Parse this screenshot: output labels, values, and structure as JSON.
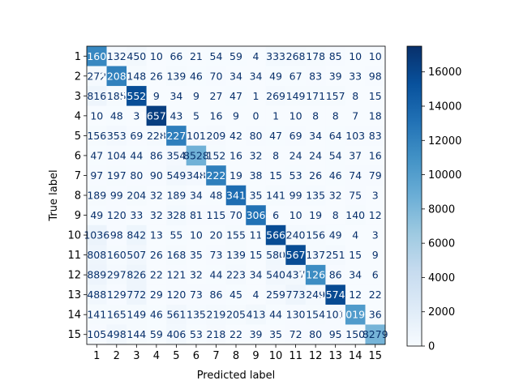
{
  "chart_data": {
    "type": "heatmap",
    "title": "",
    "xlabel": "Predicted label",
    "ylabel": "True label",
    "labels": [
      "1",
      "2",
      "3",
      "4",
      "5",
      "6",
      "7",
      "8",
      "9",
      "10",
      "11",
      "12",
      "13",
      "14",
      "15"
    ],
    "colormap": "Blues",
    "vmin": 0,
    "vmax": 17500,
    "colorbar_ticks": [
      0,
      2000,
      4000,
      6000,
      8000,
      10000,
      12000,
      14000,
      16000
    ],
    "matrix": [
      [
        11609,
        132,
        450,
        10,
        66,
        21,
        54,
        59,
        4,
        333,
        268,
        178,
        85,
        10,
        10
      ],
      [
        272,
        12082,
        148,
        26,
        139,
        46,
        70,
        34,
        34,
        49,
        67,
        83,
        39,
        33,
        98
      ],
      [
        816,
        185,
        15526,
        9,
        34,
        9,
        27,
        47,
        1,
        269,
        149,
        171,
        157,
        8,
        15
      ],
      [
        10,
        48,
        3,
        16571,
        43,
        5,
        16,
        9,
        0,
        1,
        10,
        8,
        8,
        7,
        18
      ],
      [
        156,
        353,
        69,
        228,
        12272,
        101,
        209,
        42,
        80,
        47,
        69,
        34,
        64,
        103,
        83
      ],
      [
        47,
        104,
        44,
        86,
        354,
        8528,
        152,
        16,
        32,
        8,
        24,
        24,
        54,
        37,
        16
      ],
      [
        97,
        197,
        80,
        90,
        549,
        348,
        12222,
        19,
        38,
        15,
        53,
        26,
        46,
        74,
        79
      ],
      [
        189,
        99,
        204,
        32,
        189,
        34,
        48,
        13418,
        35,
        141,
        99,
        135,
        32,
        75,
        3
      ],
      [
        49,
        120,
        33,
        32,
        328,
        81,
        115,
        70,
        13064,
        6,
        10,
        19,
        8,
        140,
        12
      ],
      [
        1036,
        98,
        842,
        13,
        55,
        10,
        20,
        155,
        11,
        15661,
        240,
        156,
        49,
        4,
        3
      ],
      [
        808,
        160,
        507,
        26,
        168,
        35,
        73,
        139,
        15,
        580,
        15671,
        137,
        251,
        15,
        9
      ],
      [
        889,
        297,
        826,
        22,
        121,
        32,
        44,
        223,
        34,
        540,
        437,
        11261,
        86,
        34,
        6
      ],
      [
        488,
        129,
        772,
        29,
        120,
        73,
        86,
        45,
        4,
        259,
        773,
        249,
        15747,
        12,
        22
      ],
      [
        141,
        165,
        149,
        46,
        561,
        135,
        219,
        205,
        413,
        44,
        130,
        154,
        101,
        10199,
        36
      ],
      [
        105,
        498,
        144,
        59,
        406,
        53,
        218,
        22,
        39,
        35,
        72,
        80,
        95,
        150,
        8279
      ]
    ]
  }
}
